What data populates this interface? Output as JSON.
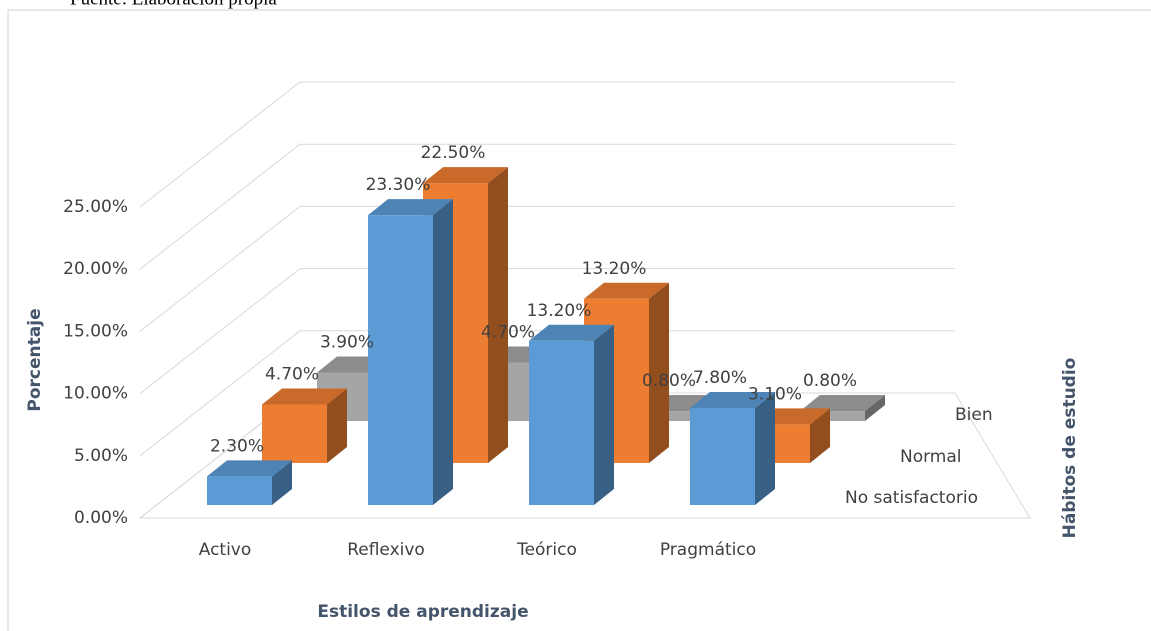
{
  "caption": "Fuente: Elaboración propia",
  "chart_data": {
    "type": "bar3d",
    "x_label": "Estilos de aprendizaje",
    "y_label": "Porcentaje",
    "z_label": "Hábitos de estudio",
    "categories": [
      "Activo",
      "Reflexivo",
      "Teórico",
      "Pragmático"
    ],
    "series": [
      {
        "name": "No satisfactorio",
        "color": "#5b9bd5",
        "values": [
          2.3,
          23.3,
          13.2,
          7.8
        ],
        "value_labels": [
          "2.30%",
          "23.30%",
          "13.20%",
          "7.80%"
        ]
      },
      {
        "name": "Normal",
        "color": "#ed7d31",
        "values": [
          4.7,
          22.5,
          13.2,
          3.1
        ],
        "value_labels": [
          "4.70%",
          "22.50%",
          "13.20%",
          "3.10%"
        ]
      },
      {
        "name": "Bien",
        "color": "#a5a5a5",
        "values": [
          3.9,
          4.7,
          0.8,
          0.8
        ],
        "value_labels": [
          "3.90%",
          "4.70%",
          "0.80%",
          "0.80%"
        ]
      }
    ],
    "ylim": [
      0,
      25
    ],
    "yticks": [
      {
        "value": 0,
        "label": "0.00%"
      },
      {
        "value": 5,
        "label": "5.00%"
      },
      {
        "value": 10,
        "label": "10.00%"
      },
      {
        "value": 15,
        "label": "15.00%"
      },
      {
        "value": 20,
        "label": "20.00%"
      },
      {
        "value": 25,
        "label": "25.00%"
      }
    ],
    "grid": true
  }
}
